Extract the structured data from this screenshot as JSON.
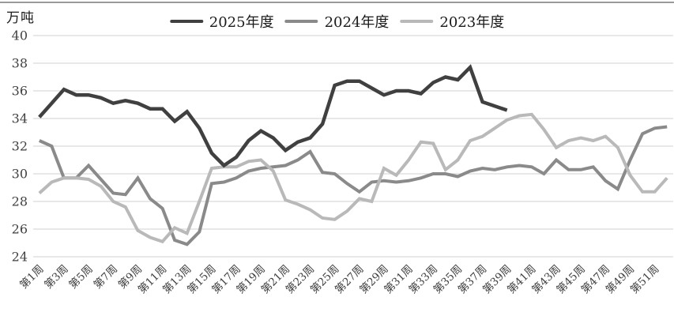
{
  "page": {
    "background": "#ffffff",
    "top_border_color": "#9a9a9a"
  },
  "chart_data": {
    "type": "line",
    "title": "",
    "unit_label": "万吨",
    "xlabel": "",
    "ylabel": "万吨",
    "ylim": [
      24,
      40
    ],
    "y_ticks": [
      40,
      38,
      36,
      34,
      32,
      30,
      28,
      26,
      24
    ],
    "x_weeks": 52,
    "x_tick_labels": [
      "第1周",
      "第3周",
      "第5周",
      "第7周",
      "第9周",
      "第11周",
      "第13周",
      "第15周",
      "第17周",
      "第19周",
      "第21周",
      "第23周",
      "第25周",
      "第27周",
      "第29周",
      "第31周",
      "第33周",
      "第35周",
      "第37周",
      "第39周",
      "第41周",
      "第43周",
      "第45周",
      "第47周",
      "第49周",
      "第51周"
    ],
    "grid": "horizontal",
    "gridline_color": "#d9d9d9",
    "axis_text_color": "#404040",
    "legend_position": "top-center",
    "series": [
      {
        "name": "2025年度",
        "color": "#404040",
        "line_width": 4.5,
        "start_week": 1,
        "values": [
          34.1,
          35.1,
          36.1,
          35.7,
          35.7,
          35.5,
          35.1,
          35.3,
          35.1,
          34.7,
          34.7,
          33.8,
          34.5,
          33.3,
          31.5,
          30.6,
          31.2,
          32.4,
          33.1,
          32.6,
          31.7,
          32.3,
          32.6,
          33.6,
          36.4,
          36.7,
          36.7,
          36.2,
          35.7,
          36.0,
          36.0,
          35.8,
          36.6,
          37.0,
          36.8,
          37.7,
          35.2,
          34.9,
          34.6
        ]
      },
      {
        "name": "2024年度",
        "color": "#8a8a8a",
        "line_width": 4,
        "start_week": 1,
        "values": [
          32.4,
          32.0,
          29.7,
          29.7,
          30.6,
          29.6,
          28.6,
          28.5,
          29.7,
          28.2,
          27.5,
          25.2,
          24.9,
          25.8,
          29.3,
          29.4,
          29.7,
          30.2,
          30.4,
          30.5,
          30.6,
          31.0,
          31.6,
          30.1,
          30.0,
          29.3,
          28.7,
          29.4,
          29.5,
          29.4,
          29.5,
          29.7,
          30.0,
          30.0,
          29.8,
          30.2,
          30.4,
          30.3,
          30.5,
          30.6,
          30.5,
          30.0,
          31.0,
          30.3,
          30.3,
          30.5,
          29.5,
          28.9,
          31.0,
          32.9,
          33.3,
          33.4
        ]
      },
      {
        "name": "2023年度",
        "color": "#b9b9b9",
        "line_width": 4,
        "start_week": 1,
        "values": [
          28.6,
          29.4,
          29.7,
          29.7,
          29.6,
          29.1,
          28.0,
          27.6,
          25.9,
          25.4,
          25.1,
          26.1,
          25.7,
          28.0,
          30.4,
          30.5,
          30.5,
          30.9,
          31.0,
          30.2,
          28.1,
          27.8,
          27.4,
          26.8,
          26.7,
          27.3,
          28.2,
          28.0,
          30.4,
          29.9,
          31.0,
          32.3,
          32.2,
          30.3,
          31.0,
          32.4,
          32.7,
          33.3,
          33.9,
          34.2,
          34.3,
          33.2,
          31.9,
          32.4,
          32.6,
          32.4,
          32.7,
          31.9,
          29.9,
          28.7,
          28.7,
          29.7
        ]
      }
    ]
  }
}
